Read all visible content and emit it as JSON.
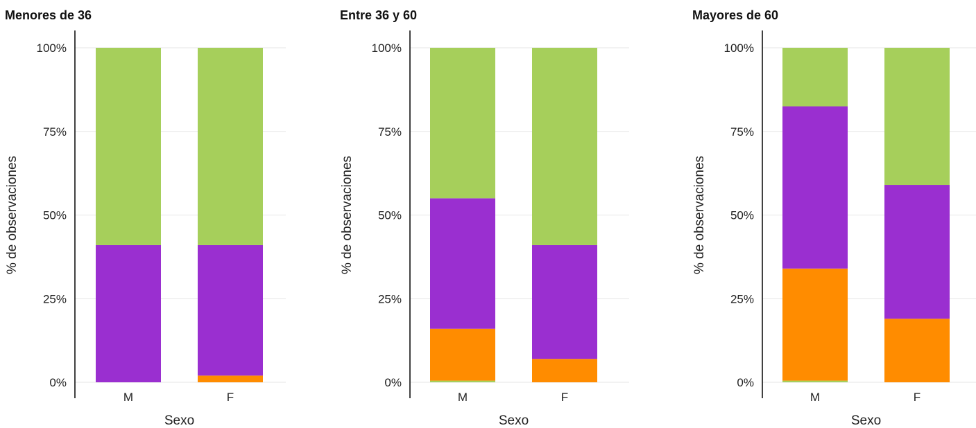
{
  "colors": {
    "orange": "#ff8c00",
    "purple": "#9a2fd0",
    "green": "#a6cf5b",
    "grid": "#e6e6e6",
    "axis": "#111111"
  },
  "chart_data": [
    {
      "type": "bar",
      "stacked": true,
      "title": "Menores de 36",
      "xlabel": "Sexo",
      "ylabel": "% de observaciones",
      "categories": [
        "M",
        "F"
      ],
      "yticks": [
        "0%",
        "25%",
        "50%",
        "75%",
        "100%"
      ],
      "ylim": [
        0,
        100
      ],
      "grid": true,
      "series": [
        {
          "color": "#a6cf5b",
          "values": [
            0,
            0
          ]
        },
        {
          "color": "#ff8c00",
          "values": [
            0,
            2
          ]
        },
        {
          "color": "#9a2fd0",
          "values": [
            41,
            39
          ]
        },
        {
          "color": "#a6cf5b",
          "values": [
            59,
            59
          ]
        }
      ]
    },
    {
      "type": "bar",
      "stacked": true,
      "title": "Entre 36 y 60",
      "xlabel": "Sexo",
      "ylabel": "% de observaciones",
      "categories": [
        "M",
        "F"
      ],
      "yticks": [
        "0%",
        "25%",
        "50%",
        "75%",
        "100%"
      ],
      "ylim": [
        0,
        100
      ],
      "grid": true,
      "series": [
        {
          "color": "#a6cf5b",
          "values": [
            0.5,
            0
          ]
        },
        {
          "color": "#ff8c00",
          "values": [
            15.5,
            7
          ]
        },
        {
          "color": "#9a2fd0",
          "values": [
            39,
            34
          ]
        },
        {
          "color": "#a6cf5b",
          "values": [
            45,
            59
          ]
        }
      ]
    },
    {
      "type": "bar",
      "stacked": true,
      "title": "Mayores de 60",
      "xlabel": "Sexo",
      "ylabel": "% de observaciones",
      "categories": [
        "M",
        "F"
      ],
      "yticks": [
        "0%",
        "25%",
        "50%",
        "75%",
        "100%"
      ],
      "ylim": [
        0,
        100
      ],
      "grid": true,
      "series": [
        {
          "color": "#a6cf5b",
          "values": [
            0.5,
            0
          ]
        },
        {
          "color": "#ff8c00",
          "values": [
            33.5,
            19
          ]
        },
        {
          "color": "#9a2fd0",
          "values": [
            48.5,
            40
          ]
        },
        {
          "color": "#a6cf5b",
          "values": [
            17.5,
            41
          ]
        }
      ]
    }
  ]
}
